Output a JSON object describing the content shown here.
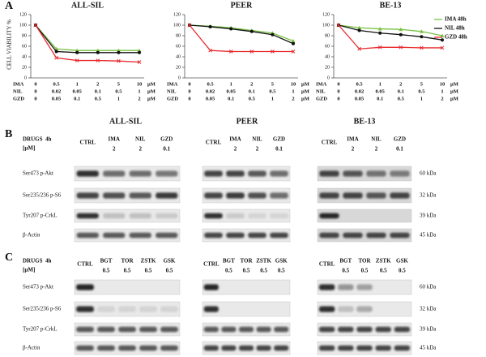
{
  "panel_labels": [
    "A",
    "B",
    "C"
  ],
  "y_axis_label": "CELL VIABILITY %",
  "chart_data": [
    {
      "type": "line",
      "title": "ALL-SIL",
      "ylim": [
        0,
        120
      ],
      "yticks": [
        0,
        20,
        40,
        60,
        80,
        100,
        120
      ],
      "series": [
        {
          "name": "IMA 48h",
          "color": "#7ac143",
          "marker": "triangle",
          "values": [
            100,
            55,
            52,
            52,
            52,
            52
          ]
        },
        {
          "name": "NIL 48h",
          "color": "#111111",
          "marker": "circle",
          "values": [
            100,
            50,
            48,
            48,
            48,
            48
          ]
        },
        {
          "name": "GZD 48h",
          "color": "#e8282c",
          "marker": "x",
          "values": [
            100,
            38,
            33,
            33,
            32,
            30
          ]
        }
      ],
      "dose_rows": [
        {
          "drug": "IMA",
          "doses": [
            "0",
            "0.5",
            "1",
            "2",
            "5",
            "10"
          ],
          "unit": "µM"
        },
        {
          "drug": "NIL",
          "doses": [
            "0",
            "0.02",
            "0.05",
            "0.1",
            "0.5",
            "1"
          ],
          "unit": "µM"
        },
        {
          "drug": "GZD",
          "doses": [
            "0",
            "0.05",
            "0.1",
            "0.5",
            "1",
            "2"
          ],
          "unit": "µM"
        }
      ]
    },
    {
      "type": "line",
      "title": "PEER",
      "ylim": [
        0,
        120
      ],
      "yticks": [
        0,
        20,
        40,
        60,
        80,
        100,
        120
      ],
      "series": [
        {
          "name": "IMA 48h",
          "color": "#7ac143",
          "marker": "triangle",
          "values": [
            100,
            98,
            95,
            90,
            85,
            70
          ]
        },
        {
          "name": "NIL 48h",
          "color": "#111111",
          "marker": "circle",
          "values": [
            100,
            97,
            93,
            88,
            82,
            65
          ]
        },
        {
          "name": "GZD 48h",
          "color": "#e8282c",
          "marker": "x",
          "values": [
            100,
            52,
            50,
            50,
            50,
            50
          ]
        }
      ],
      "dose_rows": [
        {
          "drug": "IMA",
          "doses": [
            "0",
            "0.5",
            "1",
            "2",
            "5",
            "10"
          ],
          "unit": "µM"
        },
        {
          "drug": "NIL",
          "doses": [
            "0",
            "0.02",
            "0.05",
            "0.1",
            "0.5",
            "1"
          ],
          "unit": "µM"
        },
        {
          "drug": "GZD",
          "doses": [
            "0",
            "0.05",
            "0.1",
            "0.5",
            "1",
            "2"
          ],
          "unit": "µM"
        }
      ]
    },
    {
      "type": "line",
      "title": "BE-13",
      "ylim": [
        0,
        120
      ],
      "yticks": [
        0,
        20,
        40,
        60,
        80,
        100,
        120
      ],
      "legend": "top-right",
      "series": [
        {
          "name": "IMA 48h",
          "color": "#7ac143",
          "marker": "triangle",
          "values": [
            100,
            95,
            93,
            92,
            88,
            80
          ]
        },
        {
          "name": "NIL 48h",
          "color": "#111111",
          "marker": "circle",
          "values": [
            100,
            90,
            85,
            82,
            78,
            72
          ]
        },
        {
          "name": "GZD 48h",
          "color": "#e8282c",
          "marker": "x",
          "values": [
            100,
            55,
            58,
            58,
            57,
            57
          ]
        }
      ],
      "dose_rows": [
        {
          "drug": "IMA",
          "doses": [
            "0",
            "0.5",
            "1",
            "2",
            "5",
            "10"
          ],
          "unit": "µM"
        },
        {
          "drug": "NIL",
          "doses": [
            "0",
            "0.02",
            "0.05",
            "0.1",
            "0.5",
            "1"
          ],
          "unit": "µM"
        },
        {
          "drug": "GZD",
          "doses": [
            "0",
            "0.05",
            "0.1",
            "0.5",
            "1",
            "2"
          ],
          "unit": "µM"
        }
      ]
    }
  ],
  "blots": {
    "cell_lines": [
      "ALL-SIL",
      "PEER",
      "BE-13"
    ],
    "panels": [
      {
        "drug_header": "DRUGS  4h",
        "unit_header": "[µM]",
        "control": "CTRL",
        "drugs": [
          "IMA",
          "NIL",
          "GZD"
        ],
        "doses": [
          "2",
          "2",
          "0.1"
        ],
        "rows": [
          "Ser473 p-Akt",
          "Ser235/236 p-S6",
          "Tyr207 p-CrkL",
          "β-Actin"
        ],
        "kda": [
          "60 kDa",
          "32 kDa",
          "39 kDa",
          "45 kDa"
        ]
      },
      {
        "drug_header": "DRUGS  4h",
        "unit_header": "[µM]",
        "control": "CTRL",
        "drugs": [
          "BGT",
          "TOR",
          "ZSTK",
          "GSK"
        ],
        "doses": [
          "0.5",
          "0.5",
          "0.5",
          "0.5"
        ],
        "rows": [
          "Ser473 p-Akt",
          "Ser235/236 p-S6",
          "Tyr207 p-CrkL",
          "β-Actin"
        ],
        "kda": [
          "60 kDa",
          "32 kDa",
          "39 kDa",
          "45 kDa"
        ]
      }
    ]
  }
}
